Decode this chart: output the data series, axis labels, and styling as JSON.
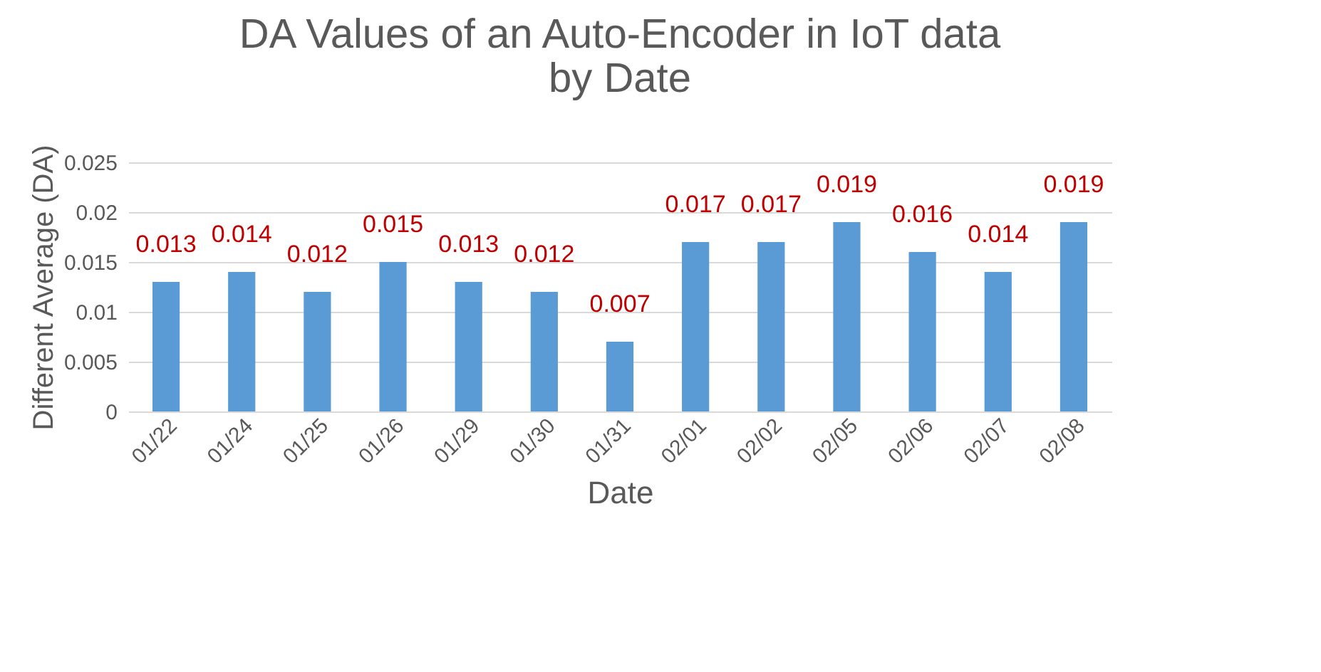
{
  "chart_data": {
    "type": "bar",
    "title": "DA Values of an Auto-Encoder in IoT data\nby Date",
    "xlabel": "Date",
    "ylabel": "Different Average (DA)",
    "categories": [
      "01/22",
      "01/24",
      "01/25",
      "01/26",
      "01/29",
      "01/30",
      "01/31",
      "02/01",
      "02/02",
      "02/05",
      "02/06",
      "02/07",
      "02/08"
    ],
    "values": [
      0.013,
      0.014,
      0.012,
      0.015,
      0.013,
      0.012,
      0.007,
      0.017,
      0.017,
      0.019,
      0.016,
      0.014,
      0.019
    ],
    "color": "#5b9bd5",
    "ylim": [
      0,
      0.025
    ],
    "yticks": [
      0,
      0.005,
      0.01,
      0.015,
      0.02,
      0.025
    ],
    "grid": "y",
    "data_labels": true
  }
}
